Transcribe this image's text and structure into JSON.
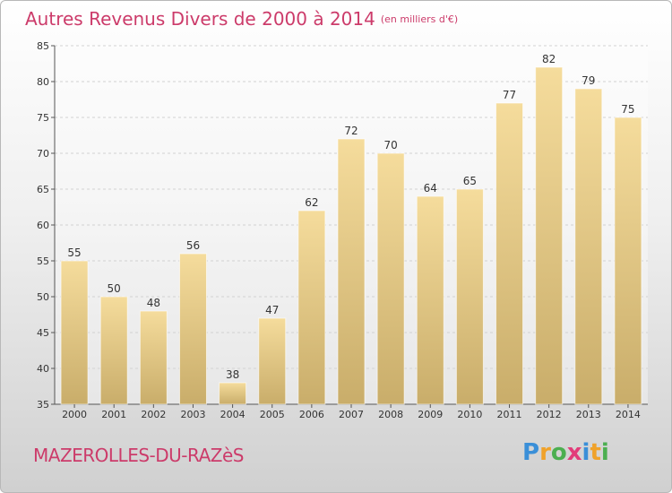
{
  "title": "Autres Revenus Divers de 2000 à 2014",
  "subtitle": "(en milliers d'€)",
  "place": "MAZEROLLES-DU-RAZèS",
  "logo": "Proxiti",
  "colors": {
    "title": "#cc3b6a",
    "bar_top": "#f5dc9c",
    "bar_bottom": "#c9ad6a",
    "grid": "#d2d2d2",
    "logo_letters": [
      "#3a8fd8",
      "#f0a22a",
      "#4caf50",
      "#e23c7a",
      "#3a8fd8",
      "#f0a22a",
      "#4caf50"
    ]
  },
  "chart_data": {
    "type": "bar",
    "title": "Autres Revenus Divers de 2000 à 2014",
    "subtitle": "(en milliers d'€)",
    "categories": [
      "2000",
      "2001",
      "2002",
      "2003",
      "2004",
      "2005",
      "2006",
      "2007",
      "2008",
      "2009",
      "2010",
      "2011",
      "2012",
      "2013",
      "2014"
    ],
    "values": [
      55,
      50,
      48,
      56,
      38,
      47,
      62,
      72,
      70,
      64,
      65,
      77,
      82,
      79,
      75
    ],
    "yticks": [
      35,
      40,
      45,
      50,
      55,
      60,
      65,
      70,
      75,
      80,
      85
    ],
    "ylim": [
      35,
      85
    ],
    "grid": true,
    "data_labels": true
  }
}
